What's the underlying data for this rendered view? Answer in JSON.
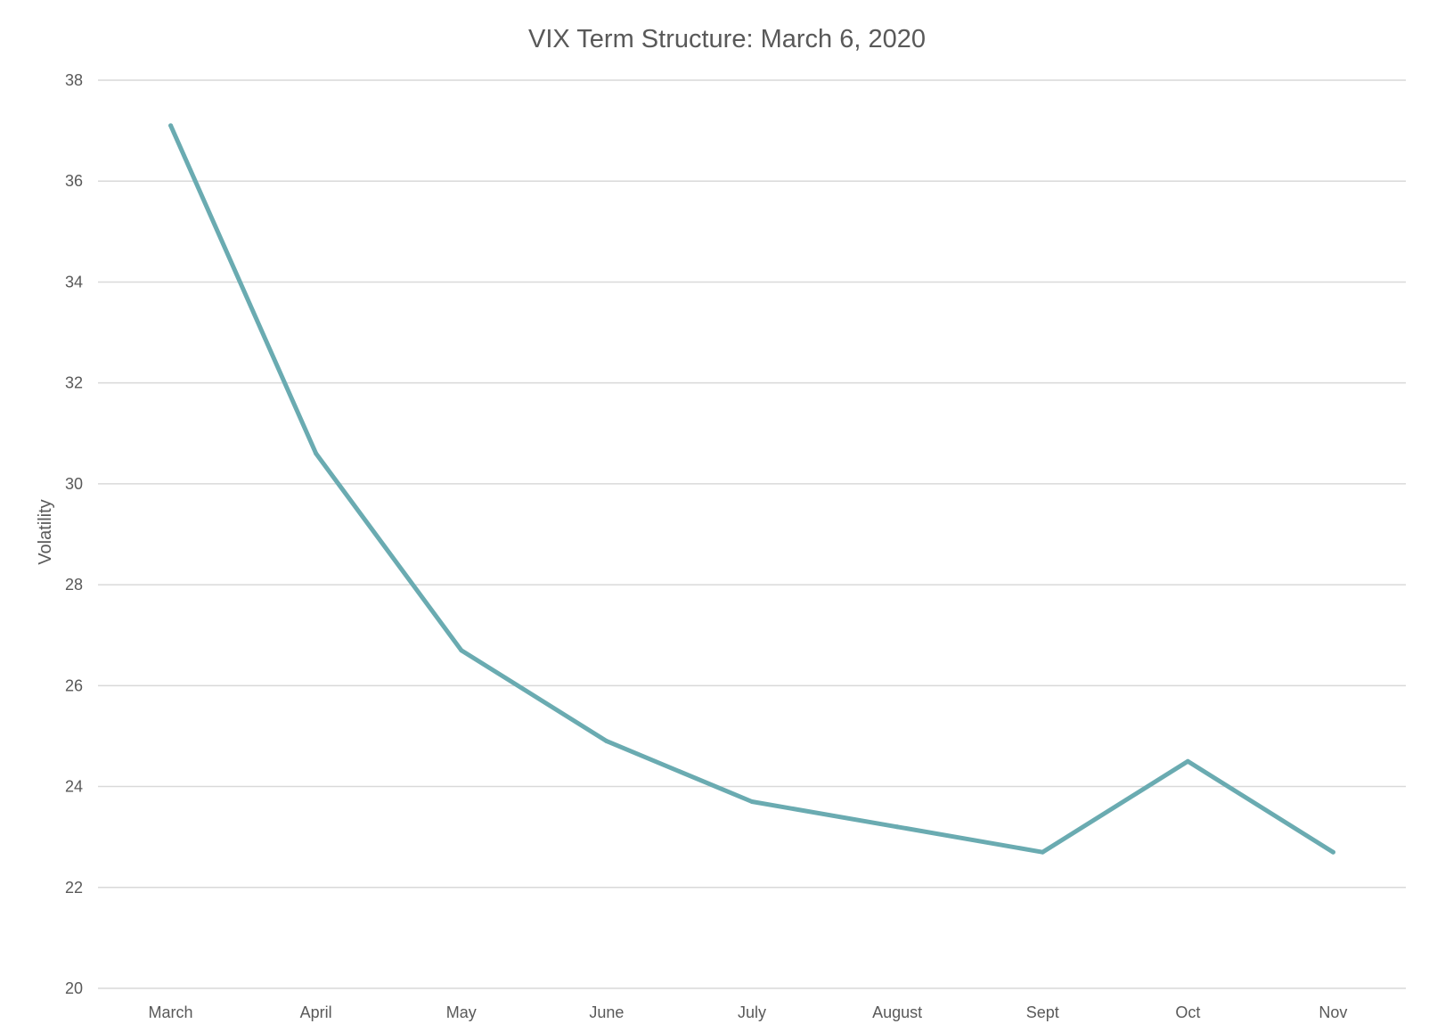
{
  "chart_data": {
    "type": "line",
    "title": "VIX Term Structure: March 6, 2020",
    "xlabel": "",
    "ylabel": "Volatility",
    "categories": [
      "March",
      "April",
      "May",
      "June",
      "July",
      "August",
      "Sept",
      "Oct",
      "Nov"
    ],
    "series": [
      {
        "values": [
          37.1,
          30.6,
          26.7,
          24.9,
          23.7,
          23.2,
          22.7,
          24.5,
          22.7
        ],
        "color": "#6aabb1"
      }
    ],
    "ylim": [
      20,
      38
    ],
    "yticks": [
      20,
      22,
      24,
      26,
      28,
      30,
      32,
      34,
      36,
      38
    ],
    "grid": true,
    "legend": "none"
  }
}
